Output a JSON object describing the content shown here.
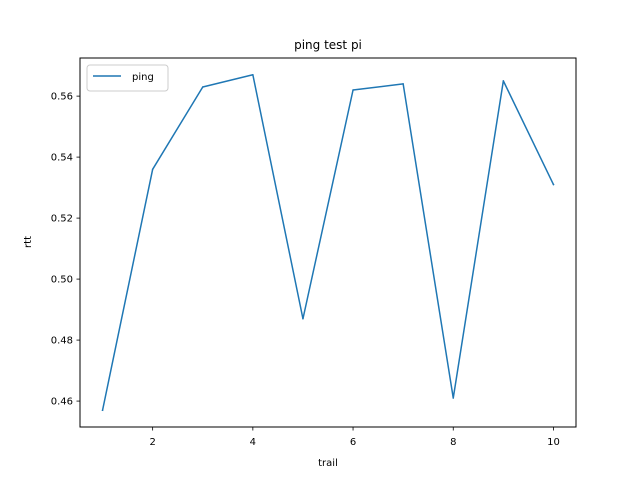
{
  "chart_data": {
    "type": "line",
    "title": "ping test pi",
    "xlabel": "trail",
    "ylabel": "rtt",
    "x": [
      1,
      2,
      3,
      4,
      5,
      6,
      7,
      8,
      9,
      10
    ],
    "series": [
      {
        "name": "ping",
        "color": "#1f77b4",
        "values": [
          0.457,
          0.536,
          0.563,
          0.567,
          0.487,
          0.562,
          0.564,
          0.461,
          0.565,
          0.531
        ]
      }
    ],
    "xlim": [
      0.55,
      10.45
    ],
    "ylim": [
      0.4515,
      0.5725
    ],
    "xticks": [
      2,
      4,
      6,
      8,
      10
    ],
    "xtick_labels": [
      "2",
      "4",
      "6",
      "8",
      "10"
    ],
    "yticks": [
      0.46,
      0.48,
      0.5,
      0.52,
      0.54,
      0.56
    ],
    "ytick_labels": [
      "0.46",
      "0.48",
      "0.50",
      "0.52",
      "0.54",
      "0.56"
    ],
    "grid": false,
    "legend_position": "upper-left"
  }
}
